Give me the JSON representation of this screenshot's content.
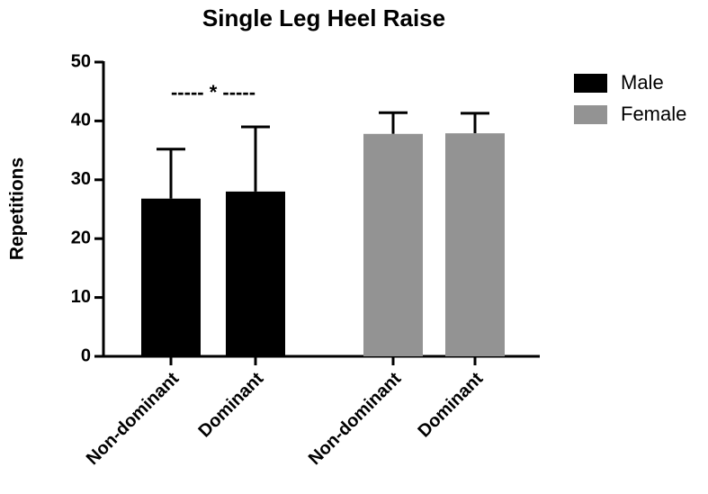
{
  "chart_data": {
    "type": "bar",
    "title": "Single Leg Heel Raise",
    "ylabel": "Repetitions",
    "categories": [
      "Non-dominant",
      "Dominant",
      "Non-dominant",
      "Dominant"
    ],
    "series": [
      {
        "name": "Male",
        "color": "#000000",
        "values": [
          26.8,
          28,
          null,
          null
        ],
        "errors": [
          8.4,
          11,
          null,
          null
        ]
      },
      {
        "name": "Female",
        "color": "#939393",
        "values": [
          null,
          null,
          37.8,
          37.9
        ],
        "errors": [
          null,
          null,
          3.6,
          3.4
        ]
      }
    ],
    "ylim": [
      0,
      50
    ],
    "yticks": [
      0,
      10,
      20,
      30,
      40,
      50
    ],
    "grid": false,
    "legend": "upper right",
    "annotation": "----- * -----"
  }
}
